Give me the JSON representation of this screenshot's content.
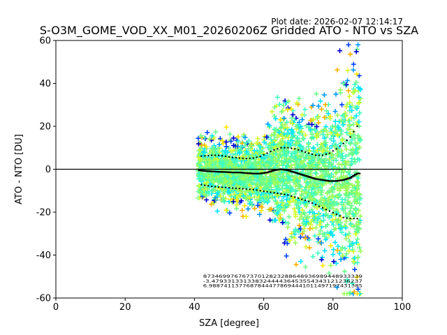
{
  "chart_data": {
    "type": "scatter",
    "title": "S-O3M_GOME_VOD_XX_M01_20260206Z Gridded ATO - NTO vs SZA",
    "plot_date": "Plot date: 2026-02-07 12:14:17",
    "xlabel": "SZA [degree]",
    "ylabel": "ATO - NTO [DU]",
    "xlim": [
      0,
      100
    ],
    "ylim": [
      -60,
      60
    ],
    "xticks": [
      0,
      20,
      40,
      60,
      80,
      100
    ],
    "yticks": [
      -60,
      -40,
      -20,
      0,
      20,
      40,
      60
    ],
    "zero_line": 0,
    "scatter_sza_range": [
      41,
      88
    ],
    "marker_colors": [
      "#0000cd",
      "#0044ff",
      "#0099ff",
      "#00e5ff",
      "#3cffc3",
      "#6aff8c",
      "#9cff5a",
      "#d4ff2a",
      "#ffe600",
      "#ffb000"
    ],
    "series": [
      {
        "name": "mean",
        "x": [
          41.5,
          43,
          45,
          47,
          49,
          51,
          53,
          55,
          57,
          59,
          61,
          63,
          65,
          67,
          69,
          71,
          73,
          75,
          77,
          79,
          81,
          83,
          85,
          87
        ],
        "y": [
          -0.5,
          -0.8,
          -1.0,
          -1.2,
          -1.3,
          -1.5,
          -1.5,
          -1.8,
          -2.0,
          -2.0,
          -1.5,
          -0.5,
          0.0,
          -0.5,
          -1.5,
          -2.5,
          -3.5,
          -4.5,
          -5.0,
          -5.5,
          -5.5,
          -5.0,
          -4.0,
          -2.0
        ]
      },
      {
        "name": "mean + stddev",
        "x": [
          41.5,
          43,
          45,
          47,
          49,
          51,
          53,
          55,
          57,
          59,
          61,
          63,
          65,
          67,
          69,
          71,
          73,
          75,
          77,
          79,
          81,
          83,
          85,
          87
        ],
        "y": [
          6.0,
          6.2,
          6.5,
          6.5,
          6.0,
          5.5,
          5.2,
          5.0,
          5.2,
          6.0,
          7.5,
          9.0,
          10.0,
          10.0,
          9.5,
          8.5,
          7.5,
          6.5,
          6.5,
          7.5,
          9.5,
          12.0,
          15.0,
          20.0
        ]
      },
      {
        "name": "mean - stddev",
        "x": [
          41.5,
          43,
          45,
          47,
          49,
          51,
          53,
          55,
          57,
          59,
          61,
          63,
          65,
          67,
          69,
          71,
          73,
          75,
          77,
          79,
          81,
          83,
          85,
          87
        ],
        "y": [
          -7.0,
          -7.5,
          -8.0,
          -8.3,
          -8.5,
          -8.8,
          -9.0,
          -9.2,
          -9.5,
          -10.0,
          -10.5,
          -11.0,
          -11.5,
          -12.0,
          -13.0,
          -14.0,
          -15.0,
          -16.5,
          -18.0,
          -19.5,
          -21.0,
          -22.5,
          -23.0,
          -23.0
        ]
      }
    ]
  },
  "annotations": {
    "rows": [
      "87346997676737012823288648936989448933339",
      "-3.47933133133832444436453554343121236237",
      "6.98874113776878444778694441011497197431385"
    ]
  }
}
